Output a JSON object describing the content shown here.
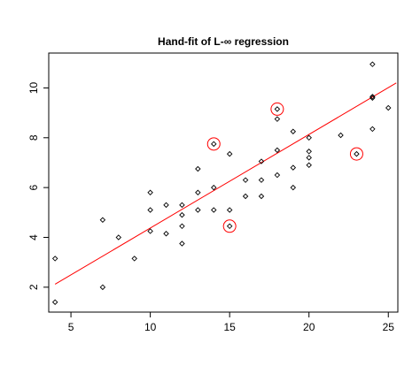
{
  "chart_data": {
    "type": "scatter",
    "title": "Hand-fit of L-∞ regression",
    "xlabel": "",
    "ylabel": "",
    "xlim": [
      3.6,
      25.6
    ],
    "ylim": [
      1.0,
      11.4
    ],
    "x_ticks": [
      5,
      10,
      15,
      20,
      25
    ],
    "y_ticks": [
      2,
      4,
      6,
      8,
      10
    ],
    "grid": false,
    "legend": "none",
    "point_color": "#000000",
    "line_color": "#ff0000",
    "highlight_color": "#ff0000",
    "points": [
      {
        "x": 4,
        "y": 3.15
      },
      {
        "x": 4,
        "y": 1.4
      },
      {
        "x": 7,
        "y": 4.7
      },
      {
        "x": 7,
        "y": 2.0
      },
      {
        "x": 8,
        "y": 4.0
      },
      {
        "x": 9,
        "y": 3.15
      },
      {
        "x": 10,
        "y": 5.8
      },
      {
        "x": 10,
        "y": 5.1
      },
      {
        "x": 10,
        "y": 4.25
      },
      {
        "x": 11,
        "y": 5.3
      },
      {
        "x": 11,
        "y": 4.15
      },
      {
        "x": 12,
        "y": 5.3
      },
      {
        "x": 12,
        "y": 4.9
      },
      {
        "x": 12,
        "y": 4.45
      },
      {
        "x": 12,
        "y": 3.75
      },
      {
        "x": 13,
        "y": 6.75
      },
      {
        "x": 13,
        "y": 5.8
      },
      {
        "x": 13,
        "y": 5.1
      },
      {
        "x": 14,
        "y": 7.75
      },
      {
        "x": 14,
        "y": 6.0
      },
      {
        "x": 14,
        "y": 5.1
      },
      {
        "x": 15,
        "y": 7.35
      },
      {
        "x": 15,
        "y": 5.1
      },
      {
        "x": 15,
        "y": 4.45
      },
      {
        "x": 16,
        "y": 6.3
      },
      {
        "x": 16,
        "y": 5.65
      },
      {
        "x": 17,
        "y": 7.05
      },
      {
        "x": 17,
        "y": 6.3
      },
      {
        "x": 17,
        "y": 5.65
      },
      {
        "x": 18,
        "y": 9.15
      },
      {
        "x": 18,
        "y": 8.75
      },
      {
        "x": 18,
        "y": 7.5
      },
      {
        "x": 18,
        "y": 6.5
      },
      {
        "x": 19,
        "y": 8.25
      },
      {
        "x": 19,
        "y": 6.8
      },
      {
        "x": 19,
        "y": 6.0
      },
      {
        "x": 20,
        "y": 8.0
      },
      {
        "x": 20,
        "y": 7.45
      },
      {
        "x": 20,
        "y": 7.2
      },
      {
        "x": 20,
        "y": 6.9
      },
      {
        "x": 22,
        "y": 8.1
      },
      {
        "x": 23,
        "y": 7.35
      },
      {
        "x": 24,
        "y": 10.95
      },
      {
        "x": 24,
        "y": 9.65
      },
      {
        "x": 24,
        "y": 9.6
      },
      {
        "x": 24,
        "y": 8.35
      },
      {
        "x": 25,
        "y": 9.2
      }
    ],
    "highlighted_points": [
      {
        "x": 14,
        "y": 7.75
      },
      {
        "x": 15,
        "y": 4.45
      },
      {
        "x": 18,
        "y": 9.15
      },
      {
        "x": 23,
        "y": 7.35
      }
    ],
    "fit_line": {
      "x": [
        4,
        25.5
      ],
      "y": [
        2.12,
        10.2
      ]
    }
  }
}
